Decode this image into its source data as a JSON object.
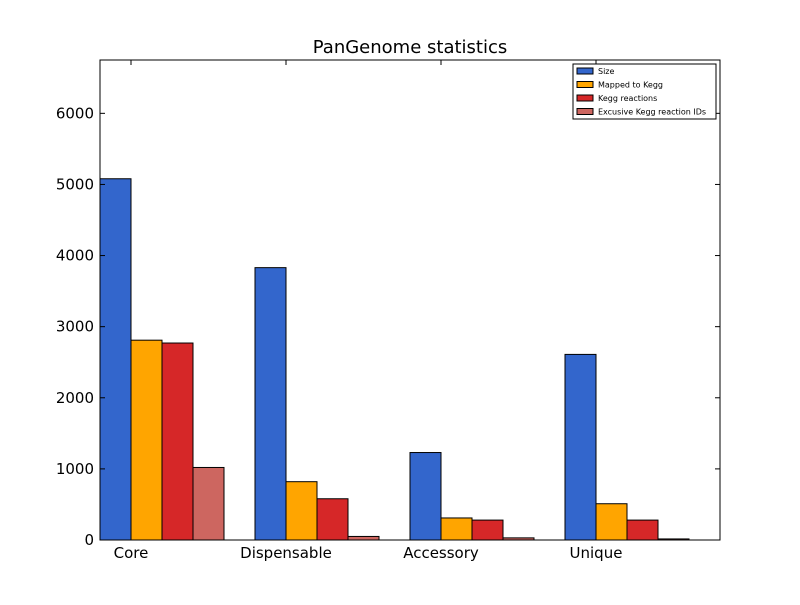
{
  "chart_data": {
    "type": "bar",
    "title": "PanGenome statistics",
    "xlabel": "",
    "ylabel": "",
    "categories": [
      "Core",
      "Dispensable",
      "Accessory",
      "Unique"
    ],
    "series": [
      {
        "name": "Size",
        "color": "#3366cc",
        "values": [
          5080,
          3830,
          1230,
          2610
        ]
      },
      {
        "name": "Mapped to Kegg",
        "color": "#ffa500",
        "values": [
          2810,
          820,
          310,
          510
        ]
      },
      {
        "name": "Kegg reactions",
        "color": "#d62728",
        "values": [
          2770,
          580,
          280,
          280
        ]
      },
      {
        "name": "Excusive Kegg reaction IDs",
        "color": "#cd6660",
        "values": [
          1020,
          50,
          30,
          15
        ]
      }
    ],
    "ylim": [
      0,
      6750
    ],
    "yticks": [
      0,
      1000,
      2000,
      3000,
      4000,
      5000,
      6000
    ],
    "legend_position": "top-right",
    "grid": false
  }
}
